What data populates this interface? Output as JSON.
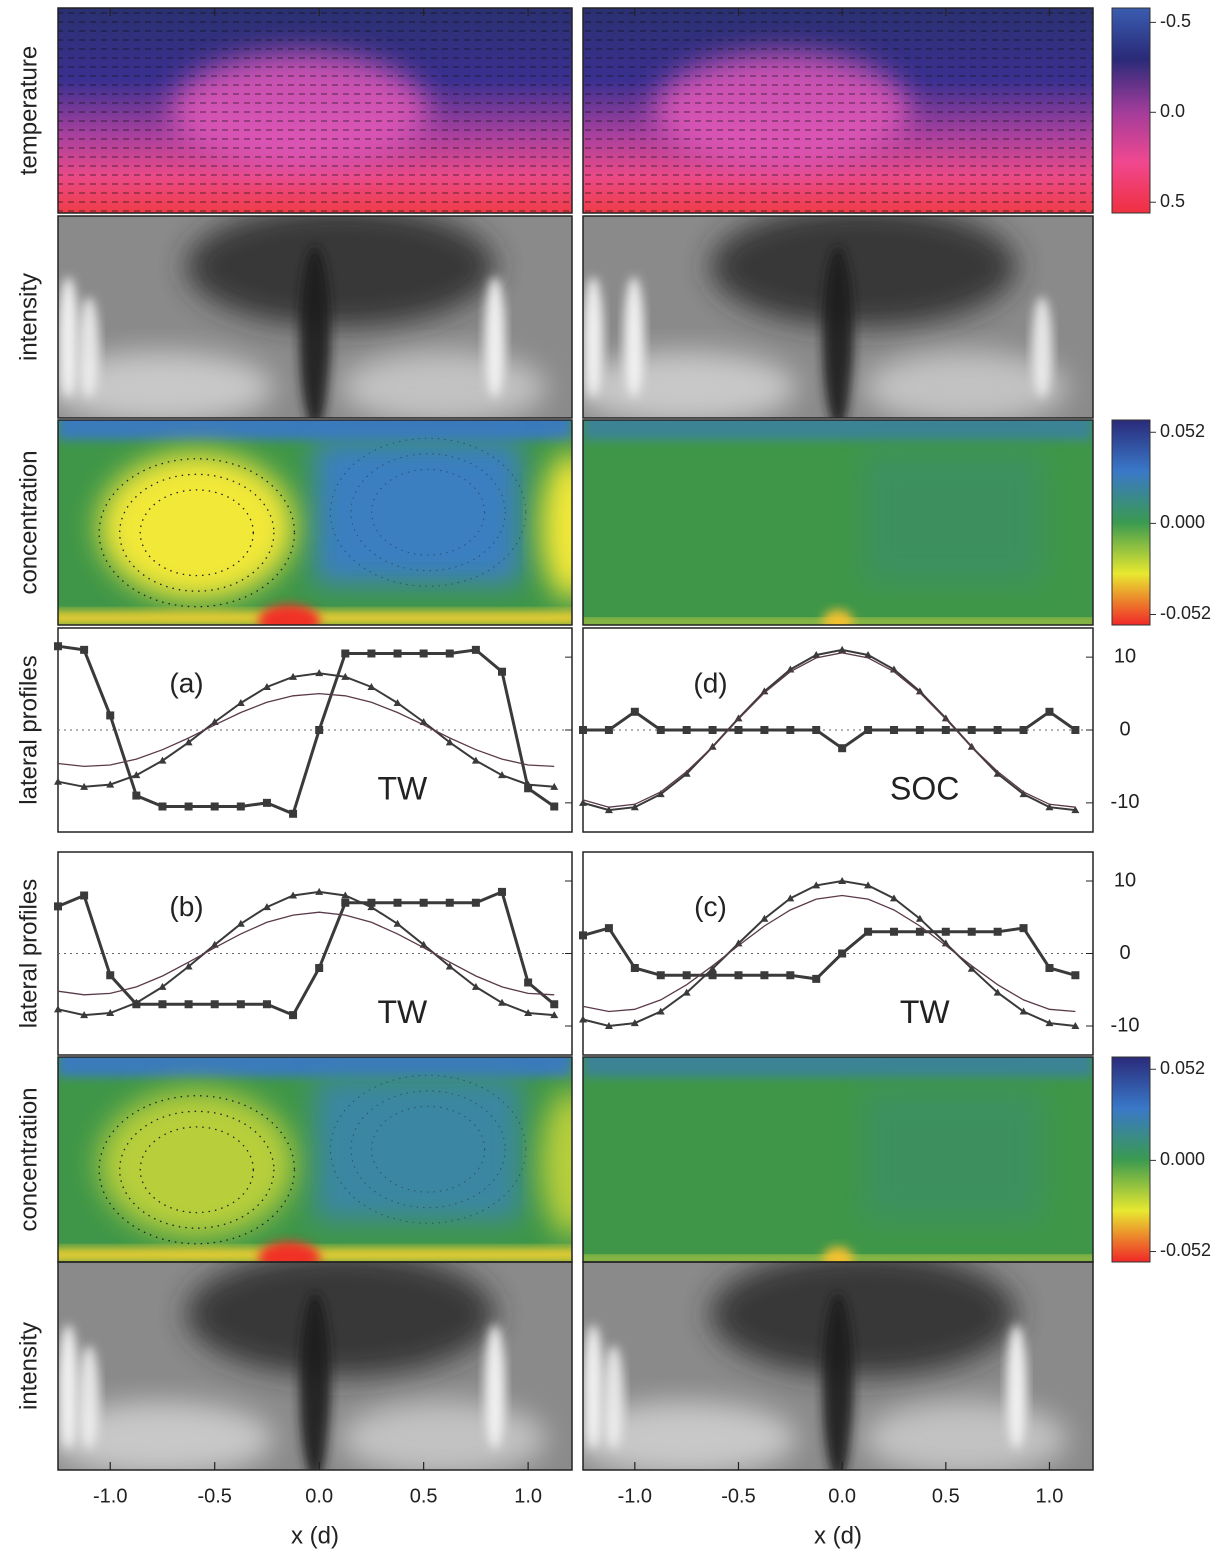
{
  "row_labels": [
    "temperature",
    "intensity",
    "concentration",
    "lateral profiles",
    "lateral profiles",
    "concentration",
    "intensity"
  ],
  "x_axis": {
    "label": "x (d)",
    "lim": [
      -1.25,
      1.21
    ],
    "ticks": [
      {
        "value": -1,
        "label": "-1.0"
      },
      -0.5,
      {
        "value": 0,
        "label": "0.0"
      },
      0.5,
      {
        "value": 1,
        "label": "1.0"
      }
    ]
  },
  "profile_y_axis": {
    "lim": [
      -14,
      14
    ],
    "ticks": [
      -10,
      0,
      10
    ]
  },
  "colorbars": [
    {
      "lim": [
        -0.58,
        0.56
      ],
      "ticks": [
        -0.5,
        {
          "value": 0,
          "label": "0.0"
        },
        0.5
      ],
      "colors": [
        "#3a5cb0",
        "#2a2a78",
        "#a03c9a",
        "#f04890",
        "#f03040"
      ]
    },
    {
      "lim": [
        0.059,
        -0.058
      ],
      "ticks": [
        0.052,
        {
          "value": 0,
          "label": "0.000"
        },
        -0.052
      ],
      "colors": [
        "#2a2a7a",
        "#3a78c8",
        "#3a9a50",
        "#e8e830",
        "#f02828"
      ]
    },
    {
      "lim": [
        0.059,
        -0.058
      ],
      "ticks": [
        0.052,
        {
          "value": 0,
          "label": "0.000"
        },
        -0.052
      ],
      "colors": [
        "#2a2a7a",
        "#3a78c8",
        "#3a9a50",
        "#e8e830",
        "#f02828"
      ]
    }
  ],
  "chart_data": [
    {
      "type": "line",
      "label": "(a)",
      "mode": "TW",
      "x": [
        -1.25,
        -1.125,
        -1,
        -0.875,
        -0.75,
        -0.625,
        -0.5,
        -0.375,
        -0.25,
        -0.125,
        0,
        0.125,
        0.25,
        0.375,
        0.5,
        0.625,
        0.75,
        0.875,
        1,
        1.125
      ],
      "series": [
        {
          "marker": "square",
          "color": "#3a3a3a",
          "values": [
            11.5,
            11,
            2,
            -9,
            -10.5,
            -10.5,
            -10.5,
            -10.5,
            -10,
            -11.5,
            0,
            10.5,
            10.5,
            10.5,
            10.5,
            10.5,
            11,
            8,
            -8,
            -10.5
          ]
        },
        {
          "marker": "triangle",
          "color": "#3a3a3a",
          "values": [
            -7.1,
            -7.8,
            -7.5,
            -6.2,
            -4.2,
            -1.7,
            1.1,
            3.7,
            5.9,
            7.3,
            7.8,
            7.3,
            5.9,
            3.7,
            1.1,
            -1.7,
            -4.2,
            -6.2,
            -7.5,
            -7.8
          ]
        },
        {
          "marker": "none",
          "color": "#5a3a4a",
          "values": [
            -4.6,
            -5.0,
            -4.8,
            -4.0,
            -2.7,
            -1.1,
            0.7,
            2.4,
            3.8,
            4.7,
            5.0,
            4.7,
            3.8,
            2.4,
            0.7,
            -1.1,
            -2.7,
            -4.0,
            -4.8,
            -5.0
          ]
        }
      ]
    },
    {
      "type": "line",
      "label": "(d)",
      "mode": "SOC",
      "x": [
        -1.25,
        -1.125,
        -1,
        -0.875,
        -0.75,
        -0.625,
        -0.5,
        -0.375,
        -0.25,
        -0.125,
        0,
        0.125,
        0.25,
        0.375,
        0.5,
        0.625,
        0.75,
        0.875,
        1,
        1.125
      ],
      "series": [
        {
          "marker": "square",
          "color": "#3a3a3a",
          "values": [
            0,
            0,
            2.5,
            0,
            0,
            0,
            0,
            0,
            0,
            0,
            -2.5,
            0,
            0,
            0,
            0,
            0,
            0,
            0,
            2.5,
            0
          ]
        },
        {
          "marker": "triangle",
          "color": "#3a3a3a",
          "values": [
            -10,
            -11,
            -10.6,
            -8.8,
            -6,
            -2.3,
            1.6,
            5.3,
            8.3,
            10.3,
            11,
            10.3,
            8.3,
            5.3,
            1.6,
            -2.3,
            -6,
            -8.8,
            -10.6,
            -11
          ]
        },
        {
          "marker": "none",
          "color": "#5a3a4a",
          "values": [
            -9.6,
            -10.6,
            -10.2,
            -8.5,
            -5.7,
            -2.3,
            1.5,
            5.1,
            8,
            9.9,
            10.6,
            9.9,
            8,
            5.1,
            1.5,
            -2.3,
            -5.7,
            -8.5,
            -10.2,
            -10.6
          ]
        }
      ]
    },
    {
      "type": "line",
      "label": "(b)",
      "mode": "TW",
      "x": [
        -1.25,
        -1.125,
        -1,
        -0.875,
        -0.75,
        -0.625,
        -0.5,
        -0.375,
        -0.25,
        -0.125,
        0,
        0.125,
        0.25,
        0.375,
        0.5,
        0.625,
        0.75,
        0.875,
        1,
        1.125
      ],
      "series": [
        {
          "marker": "square",
          "color": "#3a3a3a",
          "values": [
            6.5,
            8,
            -3,
            -7,
            -7,
            -7,
            -7,
            -7,
            -7,
            -8.5,
            -2,
            7,
            7,
            7,
            7,
            7,
            7,
            8.5,
            -4,
            -7
          ]
        },
        {
          "marker": "triangle",
          "color": "#3a3a3a",
          "values": [
            -7.7,
            -8.5,
            -8.2,
            -6.8,
            -4.6,
            -1.8,
            1.2,
            4.1,
            6.4,
            8,
            8.5,
            8,
            6.4,
            4.1,
            1.2,
            -1.8,
            -4.6,
            -6.8,
            -8.2,
            -8.5
          ]
        },
        {
          "marker": "none",
          "color": "#5a3a4a",
          "values": [
            -5.2,
            -5.7,
            -5.5,
            -4.6,
            -3.1,
            -1.2,
            0.8,
            2.7,
            4.3,
            5.3,
            5.7,
            5.3,
            4.3,
            2.7,
            0.8,
            -1.2,
            -3.1,
            -4.6,
            -5.5,
            -5.7
          ]
        }
      ]
    },
    {
      "type": "line",
      "label": "(c)",
      "mode": "TW",
      "x": [
        -1.25,
        -1.125,
        -1,
        -0.875,
        -0.75,
        -0.625,
        -0.5,
        -0.375,
        -0.25,
        -0.125,
        0,
        0.125,
        0.25,
        0.375,
        0.5,
        0.625,
        0.75,
        0.875,
        1,
        1.125
      ],
      "series": [
        {
          "marker": "square",
          "color": "#3a3a3a",
          "values": [
            2.5,
            3.5,
            -2,
            -3,
            -3,
            -3,
            -3,
            -3,
            -3,
            -3.5,
            0,
            3,
            3,
            3,
            3,
            3,
            3,
            3.5,
            -2,
            -3
          ]
        },
        {
          "marker": "triangle",
          "color": "#3a3a3a",
          "values": [
            -9.1,
            -10,
            -9.6,
            -8,
            -5.4,
            -2.1,
            1.4,
            4.8,
            7.6,
            9.4,
            10,
            9.4,
            7.6,
            4.8,
            1.4,
            -2.1,
            -5.4,
            -8,
            -9.6,
            -10
          ]
        },
        {
          "marker": "none",
          "color": "#5a3a4a",
          "values": [
            -7.3,
            -8,
            -7.7,
            -6.4,
            -4.3,
            -1.7,
            1.1,
            3.8,
            6,
            7.5,
            8,
            7.5,
            6,
            3.8,
            1.1,
            -1.7,
            -4.3,
            -6.4,
            -7.7,
            -8
          ]
        }
      ]
    }
  ]
}
